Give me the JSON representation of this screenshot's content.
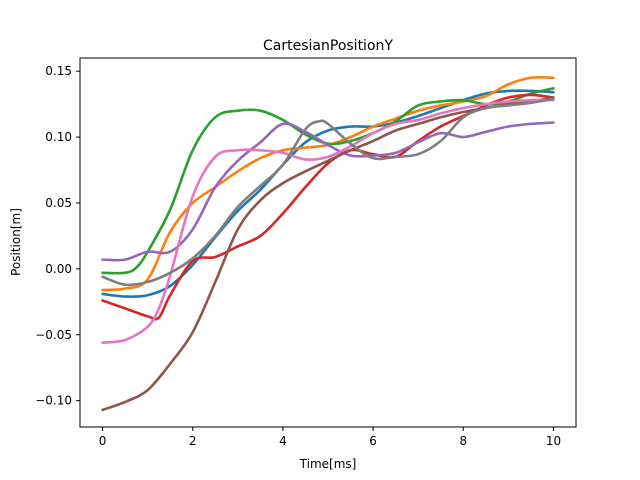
{
  "chart_data": {
    "type": "line",
    "title": "CartesianPositionY",
    "xlabel": "Time[ms]",
    "ylabel": "Position[m]",
    "xlim": [
      -0.5,
      10.5
    ],
    "ylim": [
      -0.12,
      0.16
    ],
    "xticks": [
      0,
      2,
      4,
      6,
      8,
      10
    ],
    "xtick_labels": [
      "0",
      "2",
      "4",
      "6",
      "8",
      "10"
    ],
    "yticks": [
      -0.1,
      -0.05,
      0.0,
      0.05,
      0.1,
      0.15
    ],
    "ytick_labels": [
      "−0.10",
      "−0.05",
      "0.00",
      "0.05",
      "0.10",
      "0.15"
    ],
    "grid": false,
    "legend": "none",
    "series": [
      {
        "color": "#1f77b4",
        "x": [
          0,
          0.5,
          1,
          1.5,
          2,
          2.5,
          3,
          3.5,
          4,
          4.5,
          5,
          5.5,
          6,
          6.5,
          7,
          7.5,
          8,
          8.5,
          9,
          9.5,
          10
        ],
        "values": [
          -0.019,
          -0.021,
          -0.02,
          -0.013,
          0.003,
          0.024,
          0.044,
          0.06,
          0.079,
          0.096,
          0.105,
          0.108,
          0.108,
          0.111,
          0.116,
          0.122,
          0.128,
          0.133,
          0.135,
          0.135,
          0.134
        ]
      },
      {
        "color": "#ff7f0e",
        "x": [
          0,
          0.5,
          1,
          1.5,
          2,
          2.5,
          3,
          3.5,
          4,
          4.5,
          5,
          5.5,
          6,
          6.5,
          7,
          7.5,
          8,
          8.5,
          9,
          9.5,
          10
        ],
        "values": [
          -0.016,
          -0.015,
          -0.008,
          0.028,
          0.05,
          0.062,
          0.074,
          0.084,
          0.09,
          0.092,
          0.094,
          0.1,
          0.108,
          0.114,
          0.12,
          0.124,
          0.127,
          0.131,
          0.14,
          0.145,
          0.145
        ]
      },
      {
        "color": "#2ca02c",
        "x": [
          0,
          0.5,
          0.75,
          1,
          1.5,
          2,
          2.5,
          3,
          3.5,
          4,
          4.5,
          5,
          5.5,
          6,
          6.5,
          7,
          7.5,
          8,
          8.5,
          9,
          9.5,
          10
        ],
        "values": [
          -0.003,
          -0.003,
          0.001,
          0.013,
          0.045,
          0.09,
          0.115,
          0.12,
          0.12,
          0.113,
          0.102,
          0.095,
          0.097,
          0.103,
          0.112,
          0.124,
          0.127,
          0.128,
          0.125,
          0.127,
          0.133,
          0.137
        ]
      },
      {
        "color": "#d62728",
        "x": [
          0,
          0.5,
          1,
          1.25,
          1.5,
          2,
          2.5,
          3,
          3.5,
          4,
          4.5,
          5,
          5.5,
          6,
          6.5,
          7,
          7.5,
          8,
          8.5,
          9,
          9.5,
          10
        ],
        "values": [
          -0.024,
          -0.03,
          -0.036,
          -0.037,
          -0.02,
          0.006,
          0.009,
          0.017,
          0.025,
          0.042,
          0.062,
          0.08,
          0.09,
          0.087,
          0.085,
          0.097,
          0.108,
          0.116,
          0.124,
          0.13,
          0.132,
          0.13
        ]
      },
      {
        "color": "#9467bd",
        "x": [
          0,
          0.5,
          1,
          1.5,
          2,
          2.5,
          3,
          3.5,
          4,
          4.5,
          5,
          5.5,
          6,
          6.5,
          7,
          7.5,
          8,
          8.5,
          9,
          9.5,
          10
        ],
        "values": [
          0.007,
          0.007,
          0.013,
          0.013,
          0.03,
          0.062,
          0.082,
          0.096,
          0.11,
          0.104,
          0.094,
          0.086,
          0.086,
          0.088,
          0.096,
          0.103,
          0.1,
          0.104,
          0.108,
          0.11,
          0.111
        ]
      },
      {
        "color": "#8c564b",
        "x": [
          0,
          0.5,
          1,
          1.5,
          2,
          2.5,
          3,
          3.5,
          4,
          4.5,
          5,
          5.5,
          6,
          6.5,
          7,
          7.5,
          8,
          8.5,
          9,
          9.5,
          10
        ],
        "values": [
          -0.107,
          -0.101,
          -0.092,
          -0.072,
          -0.048,
          -0.01,
          0.03,
          0.052,
          0.065,
          0.074,
          0.082,
          0.09,
          0.097,
          0.105,
          0.11,
          0.115,
          0.119,
          0.122,
          0.125,
          0.127,
          0.13
        ]
      },
      {
        "color": "#e377c2",
        "x": [
          0,
          0.5,
          1,
          1.25,
          1.5,
          2,
          2.5,
          3,
          3.5,
          4,
          4.5,
          5,
          5.5,
          6,
          6.5,
          7,
          7.5,
          8,
          8.5,
          9,
          9.5,
          10
        ],
        "values": [
          -0.056,
          -0.054,
          -0.044,
          -0.03,
          -0.005,
          0.055,
          0.085,
          0.09,
          0.09,
          0.088,
          0.083,
          0.085,
          0.093,
          0.103,
          0.11,
          0.113,
          0.118,
          0.122,
          0.125,
          0.127,
          0.128,
          0.128
        ]
      },
      {
        "color": "#7f7f7f",
        "x": [
          0,
          0.5,
          1,
          1.5,
          2,
          2.5,
          3,
          3.5,
          4,
          4.5,
          4.8,
          5,
          5.5,
          6,
          6.5,
          7,
          7.5,
          8,
          8.5,
          9,
          9.5,
          10
        ],
        "values": [
          -0.006,
          -0.012,
          -0.01,
          -0.003,
          0.008,
          0.025,
          0.047,
          0.063,
          0.079,
          0.106,
          0.112,
          0.11,
          0.095,
          0.084,
          0.085,
          0.087,
          0.097,
          0.115,
          0.122,
          0.124,
          0.126,
          0.129
        ]
      }
    ]
  }
}
